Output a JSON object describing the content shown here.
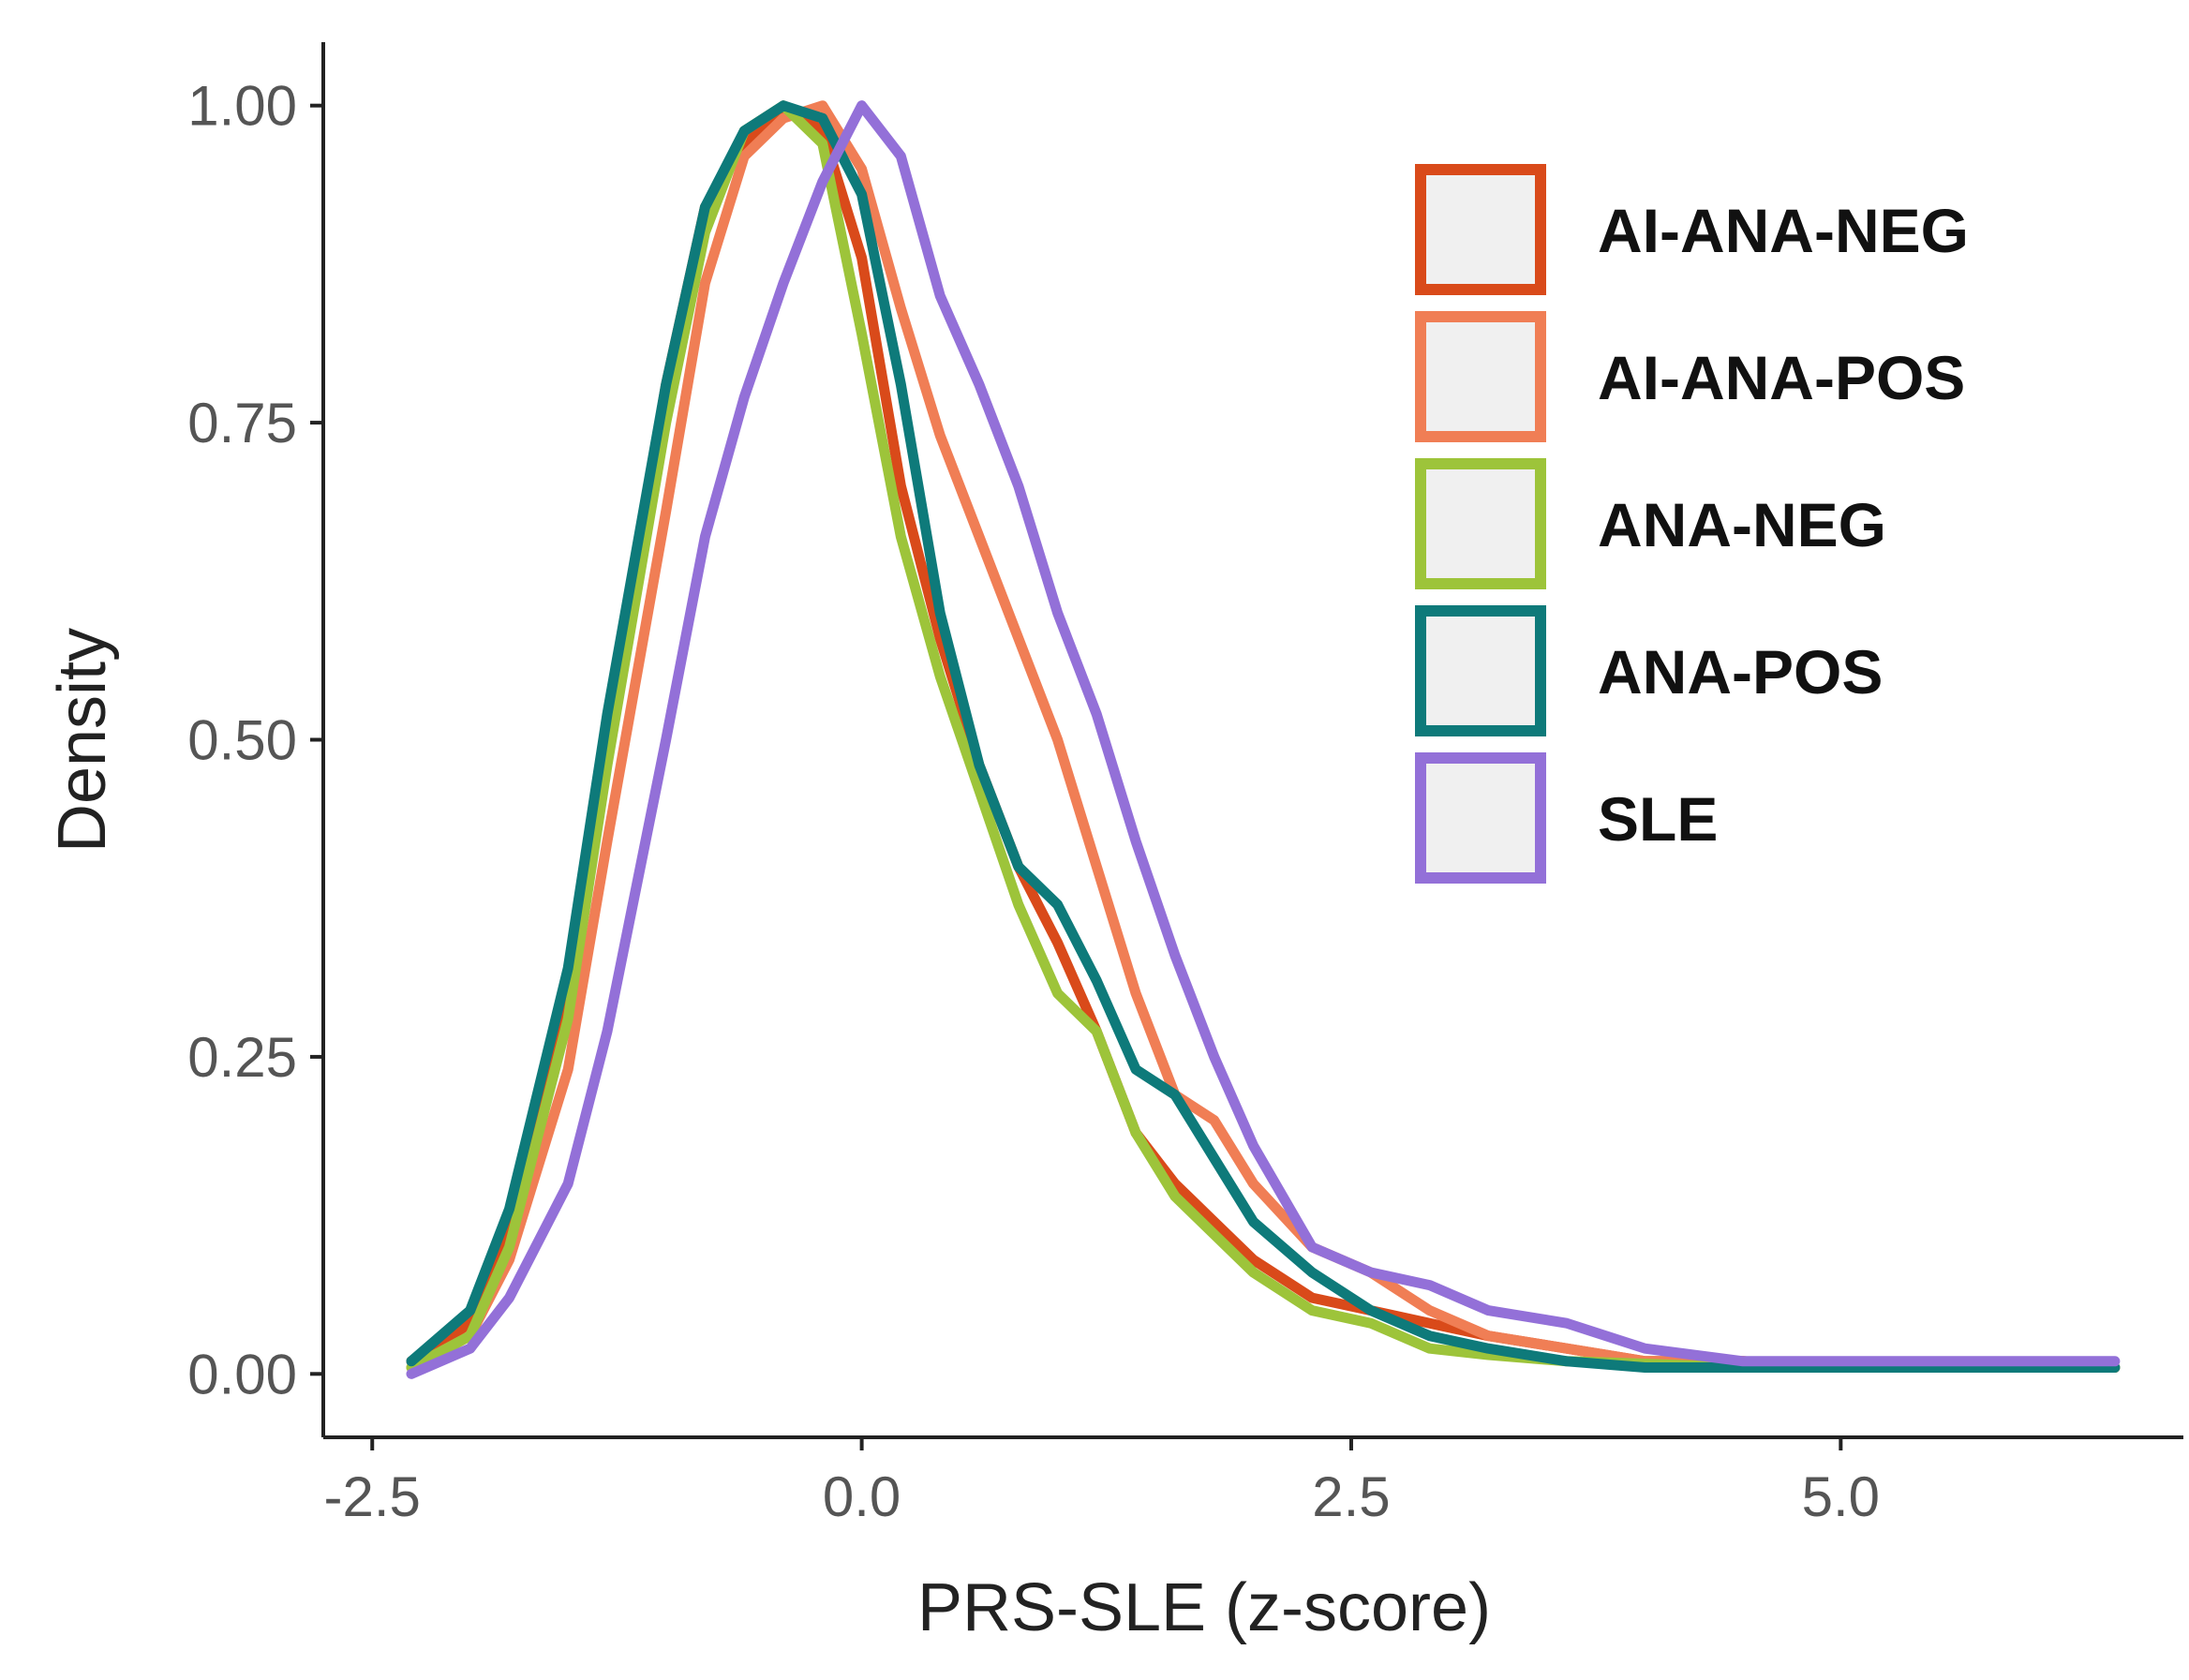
{
  "chart_data": {
    "type": "line",
    "title": "",
    "xlabel": "PRS-SLE (z-score)",
    "ylabel": "Density",
    "xlim": [
      -2.75,
      6.75
    ],
    "ylim": [
      -0.05,
      1.05
    ],
    "x_ticks": [
      -2.5,
      0.0,
      2.5,
      5.0
    ],
    "y_ticks": [
      0.0,
      0.25,
      0.5,
      0.75,
      1.0
    ],
    "x_tick_labels": [
      "-2.5",
      "0.0",
      "2.5",
      "5.0"
    ],
    "y_tick_labels": [
      "0.00",
      "0.25",
      "0.50",
      "0.75",
      "1.00"
    ],
    "grid": false,
    "legend_position": "top-right",
    "series": [
      {
        "name": "AI-ANA-NEG",
        "color": "#d94a1a",
        "x": [
          -2.3,
          -2.0,
          -1.8,
          -1.5,
          -1.3,
          -1.0,
          -0.8,
          -0.6,
          -0.4,
          -0.2,
          0.0,
          0.2,
          0.4,
          0.6,
          0.8,
          1.0,
          1.2,
          1.4,
          1.6,
          1.8,
          2.0,
          2.3,
          2.6,
          2.9,
          3.2,
          3.6,
          4.0,
          4.5,
          5.0,
          5.5,
          6.0,
          6.4
        ],
        "y": [
          0.01,
          0.04,
          0.12,
          0.3,
          0.5,
          0.78,
          0.92,
          0.97,
          1.0,
          0.98,
          0.88,
          0.7,
          0.58,
          0.48,
          0.4,
          0.34,
          0.27,
          0.19,
          0.15,
          0.12,
          0.09,
          0.06,
          0.05,
          0.04,
          0.03,
          0.02,
          0.01,
          0.01,
          0.005,
          0.005,
          0.005,
          0.005
        ]
      },
      {
        "name": "AI-ANA-POS",
        "color": "#f07e55",
        "x": [
          -2.3,
          -2.0,
          -1.8,
          -1.5,
          -1.3,
          -1.0,
          -0.8,
          -0.6,
          -0.4,
          -0.2,
          0.0,
          0.2,
          0.4,
          0.6,
          0.8,
          1.0,
          1.2,
          1.4,
          1.6,
          1.8,
          2.0,
          2.3,
          2.6,
          2.9,
          3.2,
          3.6,
          4.0,
          4.5,
          5.0,
          5.5,
          6.0,
          6.4
        ],
        "y": [
          0.005,
          0.03,
          0.09,
          0.24,
          0.42,
          0.68,
          0.86,
          0.96,
          0.99,
          1.0,
          0.95,
          0.84,
          0.74,
          0.66,
          0.58,
          0.5,
          0.4,
          0.3,
          0.22,
          0.2,
          0.15,
          0.1,
          0.08,
          0.05,
          0.03,
          0.02,
          0.01,
          0.01,
          0.005,
          0.005,
          0.005,
          0.005
        ]
      },
      {
        "name": "ANA-NEG",
        "color": "#9dc43a",
        "x": [
          -2.3,
          -2.0,
          -1.8,
          -1.5,
          -1.3,
          -1.0,
          -0.8,
          -0.6,
          -0.4,
          -0.2,
          0.0,
          0.2,
          0.4,
          0.6,
          0.8,
          1.0,
          1.2,
          1.4,
          1.6,
          1.8,
          2.0,
          2.3,
          2.6,
          2.9,
          3.2,
          3.6,
          4.0,
          4.5,
          5.0,
          5.5,
          6.0,
          6.4
        ],
        "y": [
          0.005,
          0.03,
          0.1,
          0.28,
          0.48,
          0.75,
          0.9,
          0.98,
          1.0,
          0.97,
          0.82,
          0.66,
          0.55,
          0.46,
          0.37,
          0.3,
          0.27,
          0.19,
          0.14,
          0.11,
          0.08,
          0.05,
          0.04,
          0.02,
          0.015,
          0.01,
          0.008,
          0.005,
          0.005,
          0.005,
          0.005,
          0.005
        ]
      },
      {
        "name": "ANA-POS",
        "color": "#0e7a7a",
        "x": [
          -2.3,
          -2.0,
          -1.8,
          -1.5,
          -1.3,
          -1.0,
          -0.8,
          -0.6,
          -0.4,
          -0.2,
          0.0,
          0.2,
          0.4,
          0.6,
          0.8,
          1.0,
          1.2,
          1.4,
          1.6,
          1.8,
          2.0,
          2.3,
          2.6,
          2.9,
          3.2,
          3.6,
          4.0,
          4.5,
          5.0,
          5.5,
          6.0,
          6.4
        ],
        "y": [
          0.01,
          0.05,
          0.13,
          0.32,
          0.52,
          0.78,
          0.92,
          0.98,
          1.0,
          0.99,
          0.93,
          0.78,
          0.6,
          0.48,
          0.4,
          0.37,
          0.31,
          0.24,
          0.22,
          0.17,
          0.12,
          0.08,
          0.05,
          0.03,
          0.02,
          0.01,
          0.005,
          0.005,
          0.005,
          0.005,
          0.005,
          0.005
        ]
      },
      {
        "name": "SLE",
        "color": "#9370d8",
        "x": [
          -2.3,
          -2.0,
          -1.8,
          -1.5,
          -1.3,
          -1.0,
          -0.8,
          -0.6,
          -0.4,
          -0.2,
          0.0,
          0.2,
          0.4,
          0.6,
          0.8,
          1.0,
          1.2,
          1.4,
          1.6,
          1.8,
          2.0,
          2.3,
          2.6,
          2.9,
          3.2,
          3.6,
          4.0,
          4.5,
          5.0,
          5.5,
          6.0,
          6.4
        ],
        "y": [
          0.0,
          0.02,
          0.06,
          0.15,
          0.27,
          0.5,
          0.66,
          0.77,
          0.86,
          0.94,
          1.0,
          0.96,
          0.85,
          0.78,
          0.7,
          0.6,
          0.52,
          0.42,
          0.33,
          0.25,
          0.18,
          0.1,
          0.08,
          0.07,
          0.05,
          0.04,
          0.02,
          0.01,
          0.01,
          0.01,
          0.01,
          0.01
        ]
      }
    ]
  }
}
